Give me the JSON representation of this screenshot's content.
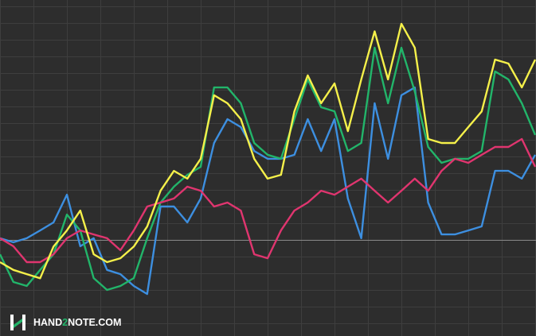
{
  "chart_data": {
    "type": "line",
    "x": [
      0,
      1,
      2,
      3,
      4,
      5,
      6,
      7,
      8,
      9,
      10,
      11,
      12,
      13,
      14,
      15,
      16,
      17,
      18,
      19,
      20,
      21,
      22,
      23,
      24,
      25,
      26,
      27,
      28,
      29,
      30,
      31,
      32,
      33,
      34,
      35,
      36,
      37,
      38,
      39,
      40
    ],
    "xlim": [
      0,
      40
    ],
    "xticks": [
      0,
      2.5,
      5,
      7.5,
      10,
      12.5,
      15,
      17.5,
      20,
      22.5,
      25,
      27.5,
      30,
      32.5,
      35,
      37.5,
      40
    ],
    "ylim": [
      -5.76,
      14.38
    ],
    "yticks": [
      -5,
      -4,
      -3,
      -2,
      -1,
      0,
      1,
      2,
      3,
      4,
      5,
      6,
      7,
      8,
      9,
      10,
      11,
      12,
      13,
      14
    ],
    "grid": true,
    "background": "#2d2d2d",
    "grid_color": "#3e3e3e",
    "zero_line_color": "#8a8a8a",
    "series": [
      {
        "color": "#3d8fe0",
        "values": [
          0.1,
          -0.14,
          0.1,
          0.57,
          1.05,
          2.71,
          -0.38,
          0.1,
          -1.8,
          -2.05,
          -2.76,
          -3.24,
          2.0,
          2.0,
          1.05,
          2.48,
          5.81,
          7.24,
          6.76,
          5.33,
          4.86,
          4.86,
          5.1,
          7.24,
          5.33,
          7.24,
          2.48,
          0.1,
          8.19,
          4.86,
          8.67,
          9.14,
          2.24,
          0.33,
          0.33,
          0.57,
          0.81,
          4.14,
          4.14,
          3.67,
          5.1
        ]
      },
      {
        "color": "#22b56a",
        "values": [
          -0.86,
          -2.52,
          -2.76,
          -1.8,
          -0.86,
          1.52,
          0.57,
          -2.29,
          -3.0,
          -2.76,
          -2.29,
          0.1,
          2.24,
          3.19,
          3.9,
          4.38,
          9.14,
          9.14,
          8.19,
          5.81,
          5.1,
          4.86,
          7.24,
          9.62,
          7.95,
          7.71,
          5.33,
          5.81,
          11.52,
          8.19,
          11.52,
          8.9,
          5.57,
          4.62,
          4.86,
          4.86,
          5.33,
          10.1,
          9.62,
          8.19,
          6.29
        ]
      },
      {
        "color": "#e0356f",
        "values": [
          0.1,
          -0.38,
          -1.33,
          -1.33,
          -0.86,
          0.1,
          0.57,
          0.33,
          0.1,
          -0.62,
          0.57,
          2.0,
          2.24,
          2.48,
          3.19,
          2.95,
          2.0,
          2.24,
          1.76,
          -0.86,
          -1.1,
          0.57,
          1.76,
          2.24,
          2.95,
          2.71,
          3.19,
          3.67,
          2.95,
          2.24,
          2.95,
          3.67,
          2.95,
          4.14,
          4.86,
          4.62,
          5.1,
          5.57,
          5.57,
          6.05,
          4.38
        ]
      },
      {
        "color": "#f5f04a",
        "values": [
          -1.33,
          -1.8,
          -2.05,
          -2.3,
          -0.4,
          0.57,
          1.76,
          -0.86,
          -1.33,
          -1.1,
          -0.4,
          0.8,
          2.95,
          4.14,
          3.67,
          4.86,
          8.67,
          8.19,
          7.24,
          4.86,
          3.67,
          3.9,
          7.7,
          9.86,
          8.19,
          9.38,
          6.52,
          9.62,
          12.5,
          9.62,
          12.95,
          11.52,
          6.05,
          5.81,
          5.81,
          6.76,
          7.7,
          10.81,
          10.57,
          9.14,
          10.81
        ]
      }
    ],
    "watermark": {
      "parts": [
        "HAND",
        "2",
        "NOTE.COM"
      ],
      "colors": [
        "#ffffff",
        "#22b56a",
        "#ffffff"
      ]
    }
  }
}
